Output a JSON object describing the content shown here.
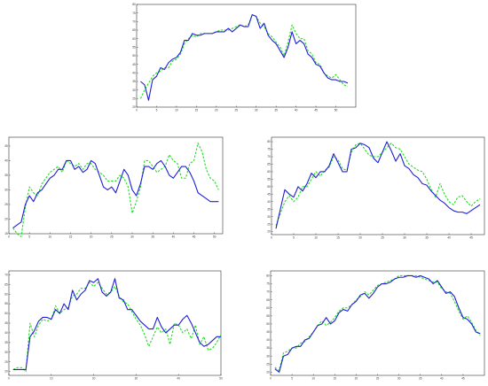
{
  "colors": {
    "actual": "#1f1fd6",
    "predicted": "#22dd22",
    "axis": "#333333",
    "background": "#ffffff"
  },
  "chart_data": [
    {
      "type": "line",
      "xlim": [
        0,
        55
      ],
      "ylim": [
        20,
        80
      ],
      "xticks": [
        "0",
        "5",
        "10",
        "15",
        "20",
        "25",
        "30",
        "35",
        "40",
        "45",
        "50"
      ],
      "yticks": [
        "20",
        "25",
        "30",
        "35",
        "40",
        "45",
        "50",
        "55",
        "60",
        "65",
        "70",
        "75",
        "80"
      ],
      "x": [
        1,
        2,
        3,
        4,
        5,
        6,
        7,
        8,
        9,
        10,
        11,
        12,
        13,
        14,
        15,
        16,
        17,
        18,
        19,
        20,
        21,
        22,
        23,
        24,
        25,
        26,
        27,
        28,
        29,
        30,
        31,
        32,
        33,
        34,
        35,
        36,
        37,
        38,
        39,
        40,
        41,
        42,
        43,
        44,
        45,
        46,
        47,
        48,
        49,
        50,
        51,
        52,
        53
      ],
      "series": [
        {
          "values": [
            35,
            33,
            24,
            36,
            38,
            43,
            42,
            46,
            48,
            49,
            52,
            59,
            59,
            63,
            62,
            62,
            63,
            63,
            63,
            64,
            64,
            64,
            66,
            64,
            66,
            68,
            67,
            67,
            74,
            73,
            66,
            69,
            62,
            59,
            57,
            53,
            49,
            55,
            64,
            57,
            59,
            57,
            51,
            49,
            45,
            44,
            40,
            37,
            36,
            36,
            35,
            35,
            34
          ]
        },
        {
          "values": [
            25,
            30,
            34,
            38,
            40,
            41,
            43,
            43,
            47,
            48,
            51,
            57,
            60,
            62,
            61,
            63,
            63,
            63,
            63,
            64,
            65,
            65,
            65,
            66,
            67,
            68,
            67,
            68,
            74,
            73,
            69,
            67,
            63,
            61,
            58,
            55,
            50,
            58,
            68,
            63,
            60,
            60,
            53,
            51,
            46,
            45,
            40,
            38,
            37,
            39,
            36,
            33,
            32
          ]
        }
      ]
    },
    {
      "type": "line",
      "xlim": [
        0,
        52
      ],
      "ylim": [
        15,
        48
      ],
      "xticks": [
        "0",
        "5",
        "10",
        "15",
        "20",
        "25",
        "30",
        "35",
        "40",
        "45",
        "50"
      ],
      "yticks": [
        "15",
        "20",
        "25",
        "30",
        "35",
        "40",
        "45"
      ],
      "x": [
        1,
        2,
        3,
        4,
        5,
        6,
        7,
        8,
        9,
        10,
        11,
        12,
        13,
        14,
        15,
        16,
        17,
        18,
        19,
        20,
        21,
        22,
        23,
        24,
        25,
        26,
        27,
        28,
        29,
        30,
        31,
        32,
        33,
        34,
        35,
        36,
        37,
        38,
        39,
        40,
        41,
        42,
        43,
        44,
        45,
        46,
        47,
        48,
        49,
        50,
        51
      ],
      "series": [
        {
          "values": [
            17,
            18,
            19,
            25,
            28,
            26,
            29,
            30,
            32,
            34,
            35,
            37,
            37,
            40,
            40,
            37,
            38,
            36,
            37,
            40,
            39,
            35,
            31,
            30,
            31,
            29,
            33,
            37,
            35,
            30,
            28,
            32,
            38,
            38,
            37,
            39,
            40,
            38,
            35,
            34,
            36,
            38,
            38,
            36,
            33,
            29,
            28,
            27,
            26,
            26,
            26
          ]
        },
        {
          "values": [
            17,
            15,
            14,
            24,
            31,
            29,
            28,
            32,
            34,
            36,
            37,
            38,
            36,
            40,
            39,
            38,
            39,
            37,
            39,
            39,
            37,
            36,
            35,
            33,
            33,
            33,
            35,
            34,
            31,
            22,
            26,
            31,
            40,
            40,
            38,
            36,
            37,
            38,
            42,
            40,
            39,
            34,
            34,
            39,
            40,
            46,
            43,
            37,
            34,
            33,
            30
          ]
        }
      ]
    },
    {
      "type": "line",
      "xlim": [
        0,
        48
      ],
      "ylim": [
        18,
        83
      ],
      "xticks": [
        "0",
        "5",
        "10",
        "15",
        "20",
        "25",
        "30",
        "35",
        "40",
        "45"
      ],
      "yticks": [
        "20",
        "25",
        "30",
        "35",
        "40",
        "45",
        "50",
        "55",
        "60",
        "65",
        "70",
        "75",
        "80"
      ],
      "x": [
        1,
        2,
        3,
        4,
        5,
        6,
        7,
        8,
        9,
        10,
        11,
        12,
        13,
        14,
        15,
        16,
        17,
        18,
        19,
        20,
        21,
        22,
        23,
        24,
        25,
        26,
        27,
        28,
        29,
        30,
        31,
        32,
        33,
        34,
        35,
        36,
        37,
        38,
        39,
        40,
        41,
        42,
        43,
        44,
        45,
        46,
        47
      ],
      "series": [
        {
          "values": [
            22,
            35,
            48,
            45,
            43,
            50,
            47,
            52,
            59,
            56,
            60,
            60,
            64,
            72,
            66,
            60,
            60,
            75,
            76,
            79,
            78,
            76,
            69,
            66,
            73,
            80,
            74,
            67,
            72,
            64,
            62,
            58,
            56,
            52,
            51,
            47,
            44,
            41,
            39,
            36,
            34,
            33,
            33,
            32,
            34,
            36,
            38
          ]
        },
        {
          "values": [
            24,
            32,
            40,
            44,
            40,
            43,
            50,
            50,
            55,
            60,
            57,
            61,
            63,
            70,
            68,
            62,
            61,
            73,
            78,
            79,
            75,
            71,
            70,
            70,
            73,
            76,
            79,
            76,
            75,
            70,
            65,
            63,
            61,
            60,
            55,
            48,
            43,
            52,
            45,
            40,
            38,
            43,
            44,
            40,
            37,
            40,
            42
          ]
        }
      ]
    },
    {
      "type": "line",
      "xlim": [
        0,
        50
      ],
      "ylim": [
        18,
        72
      ],
      "xticks": [
        "0",
        "10",
        "20",
        "30",
        "40",
        "50"
      ],
      "yticks": [
        "20",
        "25",
        "30",
        "35",
        "40",
        "45",
        "50",
        "55",
        "60",
        "65",
        "70"
      ],
      "x": [
        1,
        2,
        3,
        4,
        5,
        6,
        7,
        8,
        9,
        10,
        11,
        12,
        13,
        14,
        15,
        16,
        17,
        18,
        19,
        20,
        21,
        22,
        23,
        24,
        25,
        26,
        27,
        28,
        29,
        30,
        31,
        32,
        33,
        34,
        35,
        36,
        37,
        38,
        39,
        40,
        41,
        42,
        43,
        44,
        45,
        46,
        47,
        48,
        49,
        50
      ],
      "series": [
        {
          "values": [
            21,
            21,
            21,
            21,
            38,
            41,
            46,
            48,
            48,
            47,
            52,
            50,
            55,
            52,
            62,
            57,
            60,
            62,
            67,
            66,
            68,
            61,
            59,
            61,
            68,
            58,
            57,
            52,
            52,
            49,
            46,
            44,
            42,
            42,
            48,
            43,
            40,
            42,
            44,
            44,
            47,
            49,
            45,
            40,
            35,
            33,
            34,
            36,
            38,
            38
          ]
        },
        {
          "values": [
            21,
            22,
            22,
            20,
            45,
            38,
            44,
            47,
            46,
            47,
            54,
            50,
            52,
            53,
            59,
            60,
            63,
            63,
            66,
            64,
            66,
            63,
            60,
            61,
            64,
            59,
            56,
            55,
            51,
            47,
            44,
            39,
            33,
            38,
            43,
            40,
            42,
            34,
            45,
            44,
            40,
            42,
            37,
            44,
            34,
            38,
            31,
            32,
            35,
            39
          ]
        }
      ]
    },
    {
      "type": "line",
      "xlim": [
        0,
        50
      ],
      "ylim": [
        18,
        83
      ],
      "xticks": [
        "0",
        "5",
        "10",
        "15",
        "20",
        "25",
        "30",
        "35",
        "40",
        "45"
      ],
      "yticks": [
        "20",
        "25",
        "30",
        "35",
        "40",
        "45",
        "50",
        "55",
        "60",
        "65",
        "70",
        "75",
        "80"
      ],
      "x": [
        1,
        2,
        3,
        4,
        5,
        6,
        7,
        8,
        9,
        10,
        11,
        12,
        13,
        14,
        15,
        16,
        17,
        18,
        19,
        20,
        21,
        22,
        23,
        24,
        25,
        26,
        27,
        28,
        29,
        30,
        31,
        32,
        33,
        34,
        35,
        36,
        37,
        38,
        39,
        40,
        41,
        42,
        43,
        44,
        45,
        46,
        47,
        48,
        49
      ],
      "series": [
        {
          "values": [
            22,
            20,
            30,
            31,
            35,
            36,
            36,
            40,
            41,
            45,
            49,
            50,
            54,
            50,
            52,
            57,
            59,
            58,
            62,
            64,
            68,
            69,
            66,
            69,
            73,
            75,
            75,
            76,
            78,
            79,
            79,
            80,
            80,
            79,
            80,
            79,
            78,
            75,
            77,
            73,
            69,
            70,
            67,
            60,
            54,
            53,
            50,
            45,
            44
          ]
        },
        {
          "values": [
            23,
            21,
            32,
            33,
            35,
            35,
            38,
            39,
            42,
            45,
            49,
            52,
            49,
            51,
            54,
            58,
            60,
            60,
            62,
            65,
            67,
            70,
            68,
            71,
            74,
            75,
            76,
            77,
            78,
            80,
            80,
            80,
            80,
            80,
            79,
            78,
            77,
            76,
            76,
            72,
            70,
            69,
            64,
            58,
            53,
            55,
            51,
            46,
            43
          ]
        }
      ]
    }
  ]
}
